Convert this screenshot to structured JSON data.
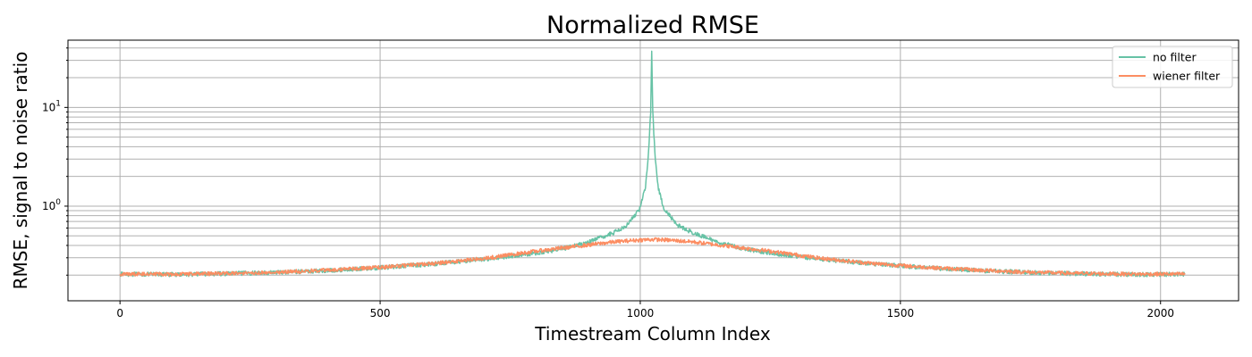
{
  "chart_data": {
    "type": "line",
    "title": "Normalized RMSE",
    "xlabel": "Timestream Column Index",
    "ylabel": "RMSE, signal to noise ratio",
    "x_scale": "linear",
    "y_scale": "log",
    "xlim": [
      -100,
      2150
    ],
    "ylim": [
      0.11,
      48
    ],
    "x_ticks": [
      0,
      500,
      1000,
      1500,
      2000
    ],
    "x_tick_labels": [
      "0",
      "500",
      "1000",
      "1500",
      "2000"
    ],
    "y_major_ticks": [
      1,
      10
    ],
    "y_tick_labels": [
      {
        "base": "10",
        "exp": "0"
      },
      {
        "base": "10",
        "exp": "1"
      }
    ],
    "grid": true,
    "legend_position": "top-right",
    "series": [
      {
        "name": "no filter",
        "color": "#66c2a5",
        "points": [
          [
            0,
            0.205
          ],
          [
            100,
            0.203
          ],
          [
            200,
            0.207
          ],
          [
            300,
            0.213
          ],
          [
            400,
            0.223
          ],
          [
            500,
            0.238
          ],
          [
            600,
            0.26
          ],
          [
            700,
            0.29
          ],
          [
            800,
            0.335
          ],
          [
            850,
            0.37
          ],
          [
            900,
            0.43
          ],
          [
            950,
            0.54
          ],
          [
            975,
            0.65
          ],
          [
            1000,
            0.95
          ],
          [
            1010,
            1.6
          ],
          [
            1016,
            3.5
          ],
          [
            1020,
            9
          ],
          [
            1022,
            37
          ],
          [
            1024,
            9
          ],
          [
            1028,
            3.5
          ],
          [
            1034,
            1.6
          ],
          [
            1045,
            0.95
          ],
          [
            1070,
            0.65
          ],
          [
            1100,
            0.54
          ],
          [
            1150,
            0.43
          ],
          [
            1200,
            0.37
          ],
          [
            1250,
            0.335
          ],
          [
            1350,
            0.29
          ],
          [
            1450,
            0.26
          ],
          [
            1550,
            0.238
          ],
          [
            1650,
            0.223
          ],
          [
            1750,
            0.213
          ],
          [
            1850,
            0.207
          ],
          [
            1950,
            0.203
          ],
          [
            2047,
            0.205
          ]
        ]
      },
      {
        "name": "wiener filter",
        "color": "#fc8d62",
        "points": [
          [
            0,
            0.205
          ],
          [
            100,
            0.205
          ],
          [
            200,
            0.208
          ],
          [
            300,
            0.214
          ],
          [
            400,
            0.225
          ],
          [
            500,
            0.24
          ],
          [
            600,
            0.262
          ],
          [
            700,
            0.295
          ],
          [
            800,
            0.35
          ],
          [
            900,
            0.405
          ],
          [
            950,
            0.435
          ],
          [
            1000,
            0.455
          ],
          [
            1024,
            0.46
          ],
          [
            1050,
            0.455
          ],
          [
            1100,
            0.435
          ],
          [
            1150,
            0.405
          ],
          [
            1250,
            0.35
          ],
          [
            1350,
            0.295
          ],
          [
            1450,
            0.262
          ],
          [
            1550,
            0.24
          ],
          [
            1650,
            0.225
          ],
          [
            1750,
            0.214
          ],
          [
            1850,
            0.208
          ],
          [
            1950,
            0.205
          ],
          [
            2047,
            0.205
          ]
        ]
      }
    ]
  }
}
